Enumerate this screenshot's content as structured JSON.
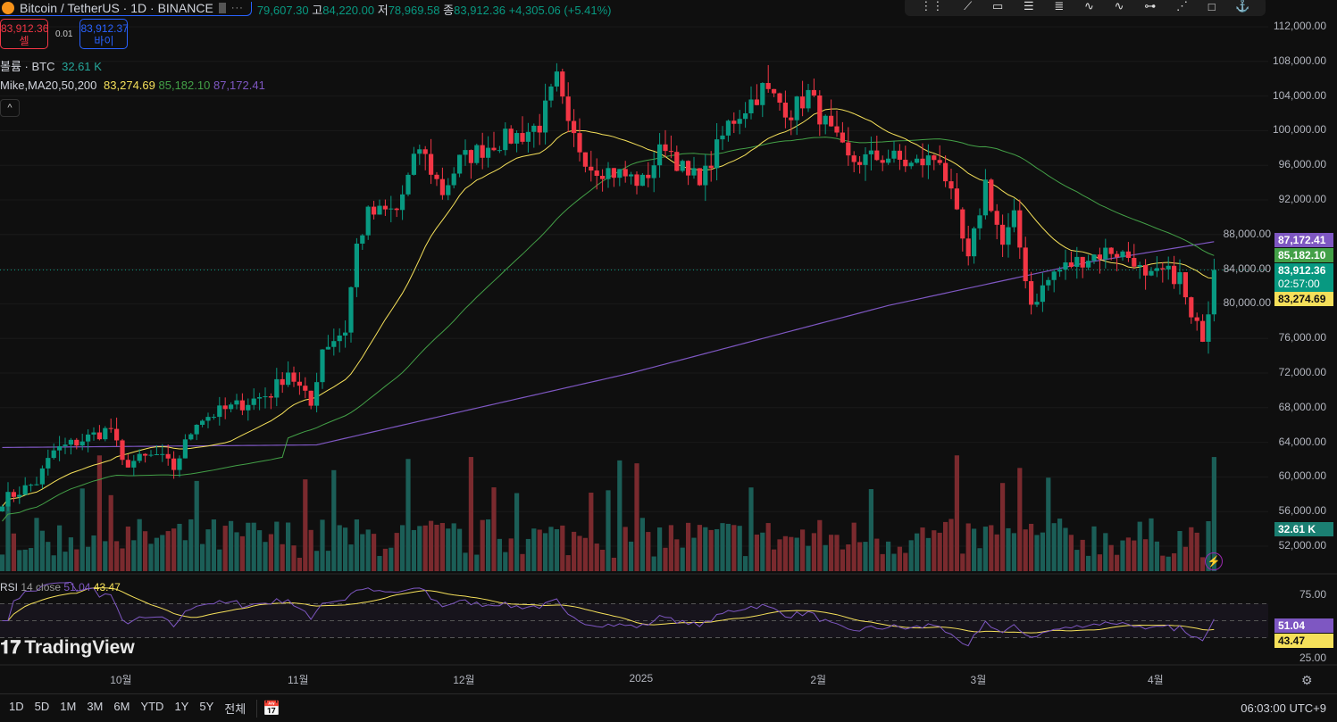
{
  "header": {
    "symbol": "Bitcoin / TetherUS · 1D · BINANCE",
    "more": "···",
    "open_label": "",
    "open": "79,607.30",
    "high_label": "고",
    "high": "84,220.00",
    "low_label": "저",
    "low": "78,969.58",
    "close_label": "종",
    "close": "83,912.36",
    "change": "+4,305.06 (+5.41%)"
  },
  "trade": {
    "sell_price": "83,912.36",
    "sell_label": "셀",
    "spread": "0.01",
    "buy_price": "83,912.37",
    "buy_label": "바이"
  },
  "volume_legend": {
    "label": "볼륨 · BTC",
    "value": "32.61 K"
  },
  "ma_legend": {
    "label": "Mike,MA20,50,200",
    "ma20": "83,274.69",
    "ma50": "85,182.10",
    "ma200": "87,172.41"
  },
  "rsi_legend": {
    "label": "RSI",
    "params": "14 close",
    "rsi": "51.04",
    "ma": "43.47"
  },
  "price_axis": [
    "112,000.00",
    "108,000.00",
    "104,000.00",
    "100,000.00",
    "96,000.00",
    "92,000.00",
    "88,000.00",
    "84,000.00",
    "80,000.00",
    "76,000.00",
    "72,000.00",
    "68,000.00",
    "64,000.00",
    "60,000.00",
    "56,000.00",
    "52,000.00"
  ],
  "rsi_axis": [
    "75.00",
    "25.00"
  ],
  "tags": {
    "ma200": "87,172.41",
    "ma50": "85,182.10",
    "price": "83,912.36",
    "countdown": "02:57:00",
    "ma20": "83,274.69",
    "volume": "32.61 K",
    "rsi": "51.04",
    "rsi_ma": "43.47"
  },
  "time_axis": [
    {
      "label": "10월",
      "day": 21
    },
    {
      "label": "11월",
      "day": 52
    },
    {
      "label": "12월",
      "day": 81
    },
    {
      "label": "2025",
      "day": 112
    },
    {
      "label": "2월",
      "day": 143
    },
    {
      "label": "3월",
      "day": 171
    },
    {
      "label": "4월",
      "day": 202
    }
  ],
  "ranges": [
    "1D",
    "5D",
    "1M",
    "3M",
    "6M",
    "YTD",
    "1Y",
    "5Y",
    "전체"
  ],
  "clock": "06:03:00 UTC+9",
  "logo": "TradingView",
  "colors": {
    "up": "#089981",
    "down": "#f23645",
    "ma20": "#f5e05a",
    "ma50": "#43a047",
    "ma200": "#7e57c2",
    "rsi": "#7e57c2"
  },
  "chart_data": {
    "type": "candlestick",
    "price_range": [
      50000,
      114000
    ],
    "close_keypoints": [
      [
        0,
        57300
      ],
      [
        6,
        59400
      ],
      [
        9,
        63000
      ],
      [
        19,
        65600
      ],
      [
        21,
        61500
      ],
      [
        27,
        62500
      ],
      [
        30,
        61000
      ],
      [
        34,
        66600
      ],
      [
        41,
        68200
      ],
      [
        47,
        69700
      ],
      [
        50,
        72300
      ],
      [
        54,
        68200
      ],
      [
        56,
        74900
      ],
      [
        60,
        77000
      ],
      [
        62,
        86700
      ],
      [
        64,
        90300
      ],
      [
        69,
        90800
      ],
      [
        73,
        98100
      ],
      [
        77,
        92900
      ],
      [
        80,
        96500
      ],
      [
        86,
        98600
      ],
      [
        91,
        99600
      ],
      [
        94,
        100700
      ],
      [
        97,
        105800
      ],
      [
        99,
        100100
      ],
      [
        103,
        96000
      ],
      [
        108,
        95000
      ],
      [
        112,
        94000
      ],
      [
        116,
        98600
      ],
      [
        120,
        94500
      ],
      [
        123,
        95000
      ],
      [
        127,
        100700
      ],
      [
        133,
        104800
      ],
      [
        138,
        102200
      ],
      [
        141,
        104200
      ],
      [
        145,
        99600
      ],
      [
        148,
        96500
      ],
      [
        155,
        97000
      ],
      [
        159,
        96000
      ],
      [
        164,
        97000
      ],
      [
        167,
        89800
      ],
      [
        169,
        84700
      ],
      [
        172,
        94000
      ],
      [
        175,
        86700
      ],
      [
        177,
        89800
      ],
      [
        180,
        80000
      ],
      [
        184,
        83600
      ],
      [
        189,
        85200
      ],
      [
        194,
        86200
      ],
      [
        198,
        85200
      ],
      [
        200,
        82600
      ],
      [
        203,
        83600
      ],
      [
        206,
        83100
      ],
      [
        208,
        78000
      ],
      [
        210,
        76500
      ],
      [
        211,
        79500
      ],
      [
        212,
        83912
      ]
    ],
    "ma200_keypoints": [
      [
        0,
        63400
      ],
      [
        55,
        63700
      ],
      [
        80,
        67500
      ],
      [
        110,
        72000
      ],
      [
        155,
        79800
      ],
      [
        190,
        84800
      ],
      [
        212,
        87172
      ]
    ],
    "rsi_range": [
      0,
      100
    ],
    "rsi_levels": [
      70,
      30
    ]
  }
}
